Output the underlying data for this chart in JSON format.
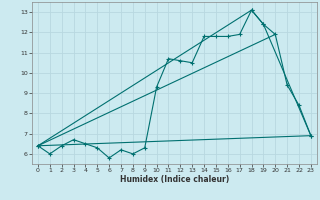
{
  "xlabel": "Humidex (Indice chaleur)",
  "bg_color": "#cceaf0",
  "grid_color": "#b8d8e0",
  "line_color": "#007070",
  "xlim": [
    -0.5,
    23.5
  ],
  "ylim": [
    5.5,
    13.5
  ],
  "xticks": [
    0,
    1,
    2,
    3,
    4,
    5,
    6,
    7,
    8,
    9,
    10,
    11,
    12,
    13,
    14,
    15,
    16,
    17,
    18,
    19,
    20,
    21,
    22,
    23
  ],
  "yticks": [
    6,
    7,
    8,
    9,
    10,
    11,
    12,
    13
  ],
  "series1_x": [
    0,
    1,
    2,
    3,
    4,
    5,
    6,
    7,
    8,
    9,
    10,
    11,
    12,
    13,
    14,
    15,
    16,
    17,
    18,
    19,
    20,
    21,
    22,
    23
  ],
  "series1_y": [
    6.4,
    6.0,
    6.4,
    6.7,
    6.5,
    6.3,
    5.8,
    6.2,
    6.0,
    6.3,
    9.3,
    10.7,
    10.6,
    10.5,
    11.8,
    11.8,
    11.8,
    11.9,
    13.1,
    12.4,
    11.9,
    9.4,
    8.4,
    6.9
  ],
  "series2_x": [
    0,
    18,
    19,
    23
  ],
  "series2_y": [
    6.4,
    13.1,
    12.4,
    6.9
  ],
  "series3_x": [
    0,
    23
  ],
  "series3_y": [
    6.4,
    6.9
  ],
  "series4_x": [
    0,
    20
  ],
  "series4_y": [
    6.4,
    11.9
  ]
}
